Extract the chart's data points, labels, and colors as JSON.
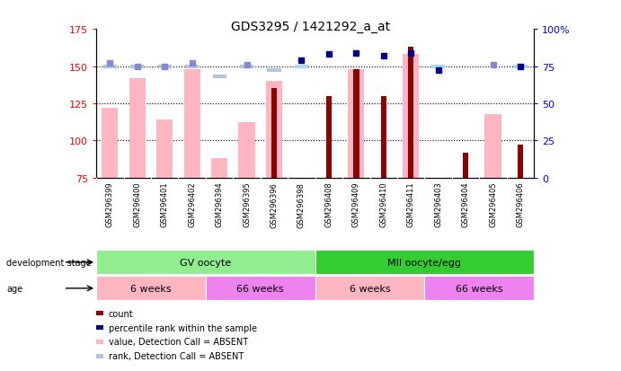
{
  "title": "GDS3295 / 1421292_a_at",
  "samples": [
    "GSM296399",
    "GSM296400",
    "GSM296401",
    "GSM296402",
    "GSM296394",
    "GSM296395",
    "GSM296396",
    "GSM296398",
    "GSM296408",
    "GSM296409",
    "GSM296410",
    "GSM296411",
    "GSM296403",
    "GSM296404",
    "GSM296405",
    "GSM296406"
  ],
  "count_values": [
    null,
    null,
    null,
    null,
    null,
    null,
    135,
    null,
    130,
    148,
    130,
    163,
    null,
    92,
    null,
    97
  ],
  "value_absent": [
    122,
    142,
    114,
    148,
    88,
    112,
    140,
    null,
    null,
    148,
    null,
    158,
    null,
    null,
    118,
    null
  ],
  "rank_present": [
    null,
    null,
    null,
    null,
    null,
    null,
    null,
    150,
    null,
    null,
    null,
    null,
    150,
    null,
    null,
    150
  ],
  "rank_absent": [
    150,
    150,
    150,
    150,
    143,
    150,
    147,
    null,
    null,
    null,
    null,
    null,
    null,
    null,
    null,
    null
  ],
  "percentile_present": [
    null,
    null,
    null,
    null,
    null,
    null,
    null,
    79,
    83,
    84,
    82,
    84,
    72,
    null,
    null,
    75
  ],
  "percentile_absent": [
    77,
    75,
    75,
    77,
    null,
    76,
    null,
    null,
    null,
    null,
    null,
    null,
    null,
    null,
    76,
    null
  ],
  "ylim_left": [
    75,
    175
  ],
  "ylim_right": [
    0,
    100
  ],
  "yticks_left": [
    75,
    100,
    125,
    150,
    175
  ],
  "yticks_right": [
    0,
    25,
    50,
    75,
    100
  ],
  "group_dev_stage": [
    {
      "label": "GV oocyte",
      "start": 0,
      "end": 8,
      "color": "#90EE90"
    },
    {
      "label": "MII oocyte/egg",
      "start": 8,
      "end": 16,
      "color": "#33CC33"
    }
  ],
  "group_age": [
    {
      "label": "6 weeks",
      "start": 0,
      "end": 4,
      "color": "#FFB6C1"
    },
    {
      "label": "66 weeks",
      "start": 4,
      "end": 8,
      "color": "#EE82EE"
    },
    {
      "label": "6 weeks",
      "start": 8,
      "end": 12,
      "color": "#FFB6C1"
    },
    {
      "label": "66 weeks",
      "start": 12,
      "end": 16,
      "color": "#EE82EE"
    }
  ],
  "count_color": "#8B0000",
  "count_absent_color": "#FFB6C1",
  "rank_present_color": "#ADD8E6",
  "rank_absent_color": "#B0C4DE",
  "percentile_present_color": "#00008B",
  "percentile_absent_color": "#8888CC",
  "dotted_lines": [
    100,
    125,
    150
  ],
  "bg_color": "#E8E8E8",
  "label_area_color": "#CCCCCC"
}
